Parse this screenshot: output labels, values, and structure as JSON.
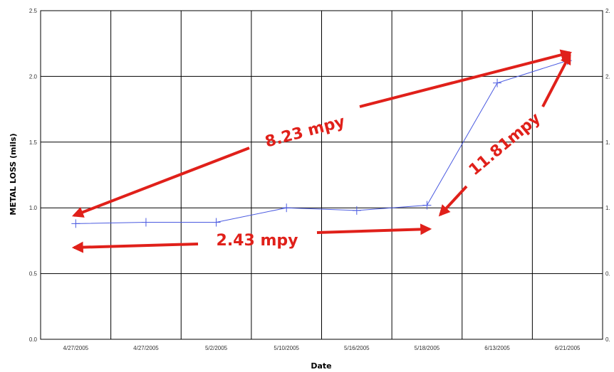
{
  "chart_data": {
    "type": "line",
    "xlabel": "Date",
    "ylabel": "METAL LOSS (mils)",
    "ylim": [
      0,
      2.5
    ],
    "yticks": [
      "0.0",
      "0.5",
      "1.0",
      "1.5",
      "2.0",
      "2.5"
    ],
    "right_yticks": [
      "0.",
      "0.",
      "1.",
      "1.",
      "2.",
      "2."
    ],
    "categories": [
      "4/27/2005",
      "4/27/2005",
      "5/2/2005",
      "5/10/2005",
      "5/16/2005",
      "5/18/2005",
      "6/13/2005",
      "6/21/2005"
    ],
    "series": [
      {
        "values": [
          0.88,
          0.89,
          0.89,
          1.0,
          0.98,
          1.02,
          1.95,
          2.12
        ]
      }
    ],
    "grid": true,
    "annotations": [
      {
        "text": "8.23 mpy"
      },
      {
        "text": "2.43 mpy"
      },
      {
        "text": "11.81mpy"
      }
    ],
    "colors": {
      "line": "#4a5ae0",
      "annotation": "#e0201a",
      "grid": "#000000"
    }
  }
}
